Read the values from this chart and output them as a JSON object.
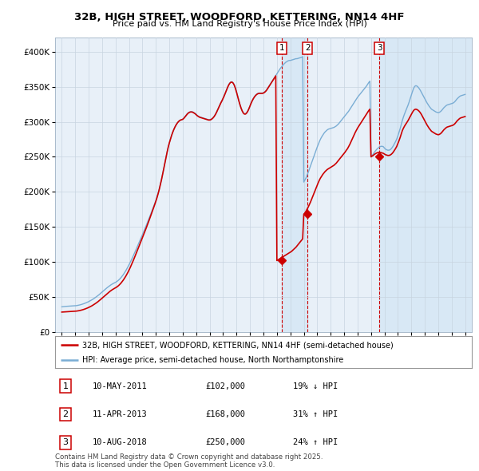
{
  "title": "32B, HIGH STREET, WOODFORD, KETTERING, NN14 4HF",
  "subtitle": "Price paid vs. HM Land Registry's House Price Index (HPI)",
  "property_label": "32B, HIGH STREET, WOODFORD, KETTERING, NN14 4HF (semi-detached house)",
  "hpi_label": "HPI: Average price, semi-detached house, North Northamptonshire",
  "property_color": "#cc0000",
  "hpi_color": "#7aadd4",
  "shade_color": "#d8e8f5",
  "background_color": "#e8f0f8",
  "sale_markers": [
    {
      "num": 1,
      "date": "10-MAY-2011",
      "price": 102000,
      "pct": "19%",
      "dir": "↓",
      "x_year": 2011.36
    },
    {
      "num": 2,
      "date": "11-APR-2013",
      "price": 168000,
      "pct": "31%",
      "dir": "↑",
      "x_year": 2013.28
    },
    {
      "num": 3,
      "date": "10-AUG-2018",
      "price": 250000,
      "pct": "24%",
      "dir": "↑",
      "x_year": 2018.61
    }
  ],
  "footer": "Contains HM Land Registry data © Crown copyright and database right 2025.\nThis data is licensed under the Open Government Licence v3.0.",
  "xlim": [
    1994.5,
    2025.5
  ],
  "ylim": [
    0,
    420000
  ],
  "yticks": [
    0,
    50000,
    100000,
    150000,
    200000,
    250000,
    300000,
    350000,
    400000
  ],
  "ytick_labels": [
    "£0",
    "£50K",
    "£100K",
    "£150K",
    "£200K",
    "£250K",
    "£300K",
    "£350K",
    "£400K"
  ],
  "xticks": [
    1995,
    1996,
    1997,
    1998,
    1999,
    2000,
    2001,
    2002,
    2003,
    2004,
    2005,
    2006,
    2007,
    2008,
    2009,
    2010,
    2011,
    2012,
    2013,
    2014,
    2015,
    2016,
    2017,
    2018,
    2019,
    2020,
    2021,
    2022,
    2023,
    2024,
    2025
  ],
  "hpi_monthly": [
    36000,
    36200,
    36400,
    36600,
    36700,
    36800,
    36900,
    37000,
    37100,
    37200,
    37300,
    37400,
    37500,
    37700,
    38000,
    38300,
    38700,
    39100,
    39600,
    40100,
    40700,
    41300,
    42000,
    42700,
    43500,
    44300,
    45200,
    46100,
    47100,
    48200,
    49300,
    50500,
    51700,
    53000,
    54400,
    55800,
    57200,
    58600,
    60000,
    61400,
    62700,
    64000,
    65200,
    66400,
    67500,
    68500,
    69400,
    70200,
    71000,
    72000,
    73200,
    74600,
    76200,
    78000,
    80000,
    82200,
    84600,
    87200,
    90000,
    93000,
    96000,
    99200,
    102500,
    105900,
    109400,
    113000,
    116700,
    120400,
    124100,
    127800,
    131500,
    135200,
    139000,
    142800,
    146700,
    150600,
    154600,
    158600,
    162700,
    166800,
    170900,
    175100,
    179300,
    183600,
    188000,
    193000,
    198500,
    204500,
    211000,
    218000,
    225500,
    233500,
    241500,
    249500,
    257000,
    264000,
    270000,
    275500,
    280500,
    285000,
    289000,
    292500,
    295500,
    298000,
    300000,
    301500,
    302500,
    303000,
    304000,
    305500,
    307500,
    309500,
    311500,
    313000,
    314000,
    314500,
    314500,
    314000,
    313000,
    312000,
    310500,
    309000,
    308000,
    307000,
    306500,
    306000,
    305500,
    305000,
    304500,
    304000,
    303500,
    303000,
    303000,
    303500,
    304500,
    306000,
    308000,
    310500,
    313500,
    317000,
    320500,
    324000,
    327500,
    330500,
    334000,
    337500,
    341500,
    345500,
    349500,
    353000,
    355500,
    357000,
    357000,
    355500,
    352500,
    348000,
    342500,
    336500,
    330500,
    325000,
    320000,
    316000,
    313000,
    311500,
    311500,
    313000,
    315500,
    319000,
    323000,
    327000,
    330500,
    333500,
    336000,
    338000,
    339500,
    340500,
    341000,
    341000,
    341000,
    341000,
    341500,
    342500,
    344000,
    346000,
    348500,
    351000,
    353500,
    356000,
    358500,
    361000,
    363500,
    366000,
    368500,
    371000,
    373500,
    376000,
    378000,
    380000,
    382000,
    383500,
    385000,
    386000,
    387000,
    387500,
    387500,
    388000,
    388500,
    389000,
    389500,
    390000,
    390000,
    390500,
    391000,
    391500,
    392000,
    393000,
    214000,
    217000,
    220000,
    224000,
    228000,
    232500,
    237000,
    241500,
    246000,
    250500,
    255000,
    259500,
    264000,
    268000,
    272000,
    275500,
    278500,
    281000,
    283500,
    285500,
    287000,
    288500,
    289500,
    290000,
    290500,
    291000,
    291500,
    292000,
    293000,
    294000,
    295500,
    297000,
    299000,
    301000,
    303000,
    305000,
    307000,
    309000,
    311000,
    313000,
    315000,
    317500,
    320000,
    322500,
    325000,
    327500,
    330000,
    332500,
    335000,
    337000,
    339000,
    341000,
    343000,
    345000,
    347000,
    349000,
    351000,
    353500,
    356000,
    358000,
    250000,
    252000,
    254000,
    256500,
    258500,
    260500,
    262000,
    263500,
    264500,
    265000,
    265000,
    264500,
    262500,
    261000,
    260000,
    259500,
    259500,
    260000,
    261500,
    263500,
    266000,
    269000,
    272000,
    275500,
    280000,
    285000,
    290000,
    296000,
    302000,
    307000,
    311500,
    315500,
    319500,
    323500,
    328000,
    333000,
    338000,
    343000,
    347500,
    350500,
    351500,
    351000,
    349500,
    347500,
    345000,
    342000,
    339000,
    336000,
    333000,
    330000,
    327000,
    324500,
    322000,
    320000,
    318000,
    317000,
    316000,
    315000,
    314000,
    313500,
    313000,
    313500,
    314500,
    316000,
    318000,
    320000,
    321500,
    323000,
    324000,
    324500,
    325000,
    325500,
    326000,
    326500,
    327500,
    329000,
    331000,
    333000,
    334500,
    336000,
    337000,
    337500,
    338000,
    338500,
    339000
  ],
  "prop_monthly": [
    28500,
    28600,
    28700,
    28800,
    28900,
    29000,
    29100,
    29200,
    29300,
    29400,
    29500,
    29600,
    29700,
    29900,
    30100,
    30400,
    30700,
    31100,
    31500,
    32000,
    32500,
    33100,
    33700,
    34400,
    35100,
    35900,
    36700,
    37600,
    38600,
    39600,
    40700,
    41800,
    43000,
    44300,
    45600,
    47000,
    48400,
    49800,
    51300,
    52700,
    54100,
    55500,
    56800,
    58100,
    59300,
    60400,
    61400,
    62300,
    63200,
    64200,
    65400,
    66800,
    68400,
    70200,
    72200,
    74400,
    76800,
    79400,
    82200,
    85200,
    88400,
    91800,
    95400,
    99000,
    102800,
    106700,
    110700,
    114700,
    118700,
    122700,
    126700,
    130700,
    134700,
    138700,
    142800,
    147000,
    151200,
    155500,
    159800,
    164200,
    168600,
    173100,
    177600,
    182200,
    186800,
    191900,
    197500,
    203600,
    210200,
    217300,
    224900,
    232900,
    241000,
    249200,
    256700,
    263800,
    269900,
    275400,
    280500,
    285000,
    289000,
    292500,
    295500,
    298000,
    300000,
    301500,
    302500,
    303000,
    303500,
    305000,
    307000,
    309000,
    311000,
    312500,
    313500,
    314000,
    314000,
    313500,
    312500,
    311500,
    310000,
    308500,
    307500,
    306500,
    306000,
    305500,
    305000,
    304500,
    304000,
    303500,
    303000,
    302500,
    302500,
    303000,
    304000,
    305500,
    307500,
    310000,
    313000,
    316500,
    320000,
    323500,
    327000,
    330000,
    333500,
    337000,
    341000,
    345000,
    349000,
    352500,
    355000,
    356500,
    356500,
    355000,
    352000,
    347500,
    342000,
    336000,
    330000,
    324500,
    319500,
    315500,
    312500,
    311000,
    311000,
    312500,
    315000,
    318500,
    322500,
    326500,
    330000,
    333000,
    335500,
    337500,
    339000,
    340000,
    340500,
    340500,
    340500,
    340500,
    341000,
    342000,
    343500,
    345500,
    348000,
    350500,
    353000,
    355500,
    358000,
    360500,
    363000,
    365500,
    102000,
    103000,
    104000,
    105000,
    106000,
    107000,
    108000,
    109000,
    110000,
    111000,
    112000,
    113000,
    114000,
    115000,
    116500,
    118000,
    119500,
    121000,
    123000,
    125000,
    127000,
    129000,
    131000,
    133000,
    168000,
    170000,
    172500,
    175500,
    178500,
    182000,
    185500,
    189500,
    193500,
    197500,
    201500,
    205500,
    209500,
    213500,
    217000,
    220000,
    222500,
    225000,
    227000,
    229000,
    230500,
    232000,
    233000,
    234000,
    235000,
    236000,
    237000,
    238000,
    239500,
    241000,
    243000,
    245000,
    247000,
    249000,
    251000,
    253000,
    255000,
    257000,
    259500,
    261500,
    264500,
    267500,
    271000,
    274500,
    278000,
    281500,
    285000,
    288000,
    291000,
    293500,
    296000,
    298500,
    301000,
    303500,
    306000,
    308500,
    311000,
    313500,
    316000,
    318000,
    250000,
    251000,
    252000,
    253500,
    254500,
    255500,
    256000,
    256500,
    256500,
    256000,
    255500,
    255000,
    254000,
    253000,
    252500,
    252000,
    252000,
    252500,
    253500,
    255000,
    257000,
    259500,
    262000,
    265000,
    269000,
    273000,
    277500,
    282500,
    287500,
    291000,
    294000,
    296500,
    299000,
    301500,
    304500,
    307500,
    310500,
    313500,
    316000,
    317500,
    318000,
    317500,
    316500,
    315000,
    313000,
    310500,
    307500,
    304500,
    301500,
    298500,
    295500,
    293000,
    290500,
    288500,
    286500,
    285500,
    284500,
    283500,
    282500,
    282000,
    281500,
    282000,
    283000,
    284500,
    286500,
    288500,
    290000,
    291500,
    292500,
    293000,
    293500,
    294000,
    294500,
    295000,
    296000,
    297500,
    299500,
    301500,
    303000,
    304500,
    305500,
    306000,
    306500,
    307000,
    307500
  ]
}
